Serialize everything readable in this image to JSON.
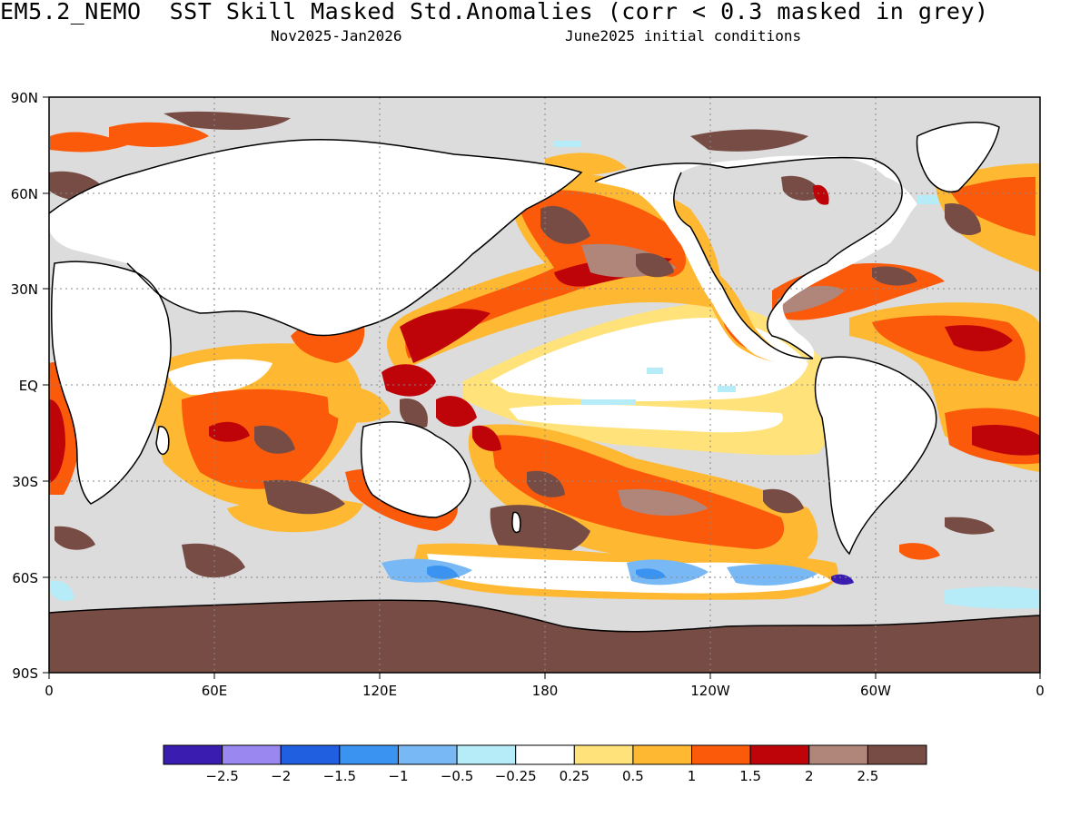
{
  "title": "EM5.2_NEMO  SST Skill Masked Std.Anomalies (corr < 0.3 masked in grey)",
  "subtitle_left": "Nov2025-Jan2026",
  "subtitle_right": "June2025 initial conditions",
  "axes": {
    "lat_labels": [
      "90N",
      "60N",
      "30N",
      "EQ",
      "30S",
      "60S",
      "90S"
    ],
    "lon_labels": [
      "0",
      "60E",
      "120E",
      "180",
      "120W",
      "60W",
      "0"
    ]
  },
  "colorbar": {
    "colors": [
      "#3a1cb0",
      "#9a88f0",
      "#1f5fe0",
      "#3a93f0",
      "#78b8f4",
      "#b6ecf8",
      "#ffffff",
      "#ffe27a",
      "#ffb832",
      "#fb5a0a",
      "#be0408",
      "#b0857a",
      "#764c44"
    ],
    "labels": [
      "-2.5",
      "-2",
      "-1.5",
      "-1",
      "-0.5",
      "-0.25",
      "0.25",
      "0.5",
      "1",
      "1.5",
      "2",
      "2.5"
    ]
  },
  "colors": {
    "masked_grey": "#dcdcdc",
    "land": "#ffffff",
    "antarctica": "#764c44",
    "coastline": "#000000"
  }
}
